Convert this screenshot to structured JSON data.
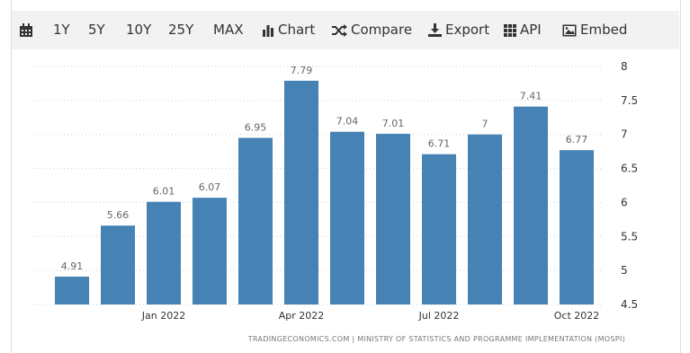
{
  "toolbar": {
    "items": [
      "1Y",
      "5Y",
      "10Y",
      "25Y",
      "MAX",
      "Chart",
      "Compare",
      "Export",
      "API",
      "Embed"
    ]
  },
  "chart_data": {
    "type": "bar",
    "categories": [
      null,
      null,
      "Jan 2022",
      null,
      null,
      "Apr 2022",
      null,
      null,
      "Jul 2022",
      null,
      null,
      "Oct 2022"
    ],
    "values": [
      4.91,
      5.66,
      6.01,
      6.07,
      6.95,
      7.79,
      7.04,
      7.01,
      6.71,
      7,
      7.41,
      6.77
    ],
    "color": "#4682b4",
    "ylim": [
      4.5,
      8
    ],
    "yticks": [
      4.5,
      5,
      5.5,
      6,
      6.5,
      7,
      7.5,
      8
    ],
    "grid": true,
    "source": "TRADINGECONOMICS.COM | MINISTRY OF STATISTICS AND PROGRAMME IMPLEMENTATION (MOSPI)"
  }
}
